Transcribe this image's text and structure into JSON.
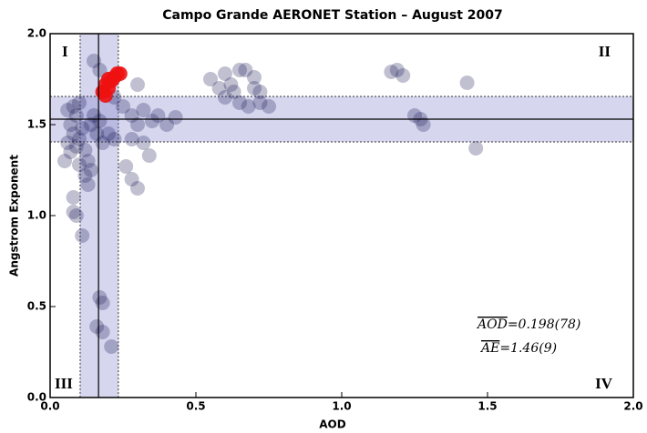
{
  "chart_data": {
    "type": "scatter",
    "title": "Campo Grande AERONET Station – August 2007",
    "x_label": "AOD",
    "y_label": "Angstrom Exponent",
    "xlim": [
      0,
      2
    ],
    "ylim": [
      0,
      2
    ],
    "xticks": [
      {
        "value": 0,
        "label": "0.0"
      },
      0.5,
      {
        "value": 1,
        "label": "1.0"
      },
      1.5,
      {
        "value": 2,
        "label": "2.0"
      }
    ],
    "yticks": [
      {
        "value": 0,
        "label": "0.0"
      },
      0.5,
      {
        "value": 1,
        "label": "1.0"
      },
      1.5,
      {
        "value": 2,
        "label": "2.0"
      }
    ],
    "quadrant_labels": [
      "I",
      "II",
      "III",
      "IV"
    ],
    "annotations": [
      {
        "name": "AOD",
        "text": "=0.198(78)"
      },
      {
        "name": "AE",
        "text": "=1.46(9)"
      }
    ],
    "vline": {
      "value": 0.166,
      "band": [
        0.103,
        0.234
      ]
    },
    "hline": {
      "value": 1.53,
      "band": [
        1.405,
        1.655
      ]
    },
    "series": [
      {
        "color": "#1c1c58",
        "opacity": 0.28,
        "x": [
          0.06,
          0.07,
          0.08,
          0.09,
          0.1,
          0.05,
          0.07,
          0.09,
          0.11,
          0.12,
          0.13,
          0.1,
          0.14,
          0.12,
          0.13,
          0.08,
          0.06,
          0.1,
          0.15,
          0.14,
          0.16,
          0.18,
          0.17,
          0.2,
          0.22,
          0.15,
          0.17,
          0.2,
          0.22,
          0.25,
          0.28,
          0.3,
          0.32,
          0.35,
          0.37,
          0.4,
          0.43,
          0.3,
          0.28,
          0.32,
          0.26,
          0.28,
          0.3,
          0.34,
          0.08,
          0.08,
          0.09,
          0.11,
          0.17,
          0.18,
          0.16,
          0.18,
          0.21,
          0.55,
          0.58,
          0.6,
          0.62,
          0.65,
          0.67,
          0.7,
          0.72,
          0.6,
          0.65,
          0.68,
          0.72,
          0.75,
          0.63,
          0.7,
          1.17,
          1.19,
          1.21,
          1.25,
          1.27,
          1.28,
          1.43,
          1.46
        ],
        "values": [
          1.4,
          1.35,
          1.45,
          1.38,
          1.42,
          1.3,
          1.5,
          1.55,
          1.48,
          1.36,
          1.3,
          1.28,
          1.25,
          1.22,
          1.17,
          1.6,
          1.58,
          1.62,
          1.55,
          1.5,
          1.45,
          1.4,
          1.52,
          1.45,
          1.42,
          1.85,
          1.8,
          1.75,
          1.65,
          1.6,
          1.55,
          1.5,
          1.58,
          1.52,
          1.55,
          1.5,
          1.54,
          1.72,
          1.42,
          1.4,
          1.27,
          1.2,
          1.15,
          1.33,
          1.1,
          1.02,
          1.0,
          0.89,
          0.55,
          0.52,
          0.39,
          0.36,
          0.28,
          1.75,
          1.7,
          1.78,
          1.72,
          1.8,
          1.8,
          1.76,
          1.68,
          1.65,
          1.62,
          1.6,
          1.62,
          1.6,
          1.68,
          1.7,
          1.79,
          1.8,
          1.77,
          1.55,
          1.53,
          1.5,
          1.73,
          1.37
        ]
      },
      {
        "color": "#ee1111",
        "opacity": 0.9,
        "x": [
          0.18,
          0.19,
          0.2,
          0.21,
          0.22,
          0.23,
          0.24,
          0.19,
          0.2
        ],
        "values": [
          1.68,
          1.72,
          1.7,
          1.74,
          1.76,
          1.78,
          1.78,
          1.66,
          1.75
        ]
      }
    ]
  }
}
